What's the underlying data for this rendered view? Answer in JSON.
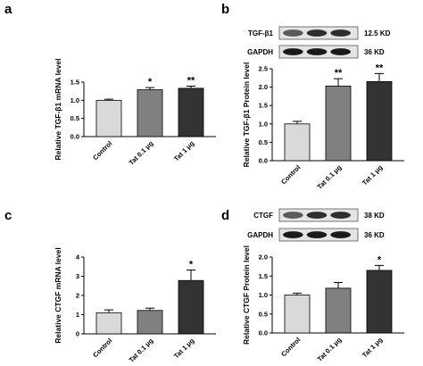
{
  "chart_data": [
    {
      "panel": "a",
      "type": "bar",
      "categories": [
        "Control",
        "Tat 0.1 μg",
        "Tat 1 μg"
      ],
      "values": [
        1.0,
        1.29,
        1.33
      ],
      "errors": [
        0.03,
        0.06,
        0.06
      ],
      "significance": [
        "",
        "*",
        "**"
      ],
      "ylabel": "Relative TGF-β1 mRNA level",
      "ylim": [
        0,
        1.5
      ],
      "yticks": [
        "0.0",
        "0.5",
        "1.0",
        "1.5"
      ],
      "colors": [
        "#d9d9d9",
        "#808080",
        "#333333"
      ]
    },
    {
      "panel": "b",
      "type": "bar",
      "categories": [
        "Control",
        "Tat 0.1 μg",
        "Tat 1 μg"
      ],
      "values": [
        1.0,
        2.03,
        2.15
      ],
      "errors": [
        0.07,
        0.2,
        0.22
      ],
      "significance": [
        "",
        "**",
        "**"
      ],
      "ylabel": "Relative TGF-β1 Protein level",
      "ylim": [
        0,
        2.5
      ],
      "yticks": [
        "0.0",
        "0.5",
        "1.0",
        "1.5",
        "2.0",
        "2.5"
      ],
      "colors": [
        "#d9d9d9",
        "#808080",
        "#333333"
      ],
      "blot": {
        "rows": [
          {
            "label": "TGF-β1",
            "size": "12.5 KD"
          },
          {
            "label": "GAPDH",
            "size": "36 KD"
          }
        ]
      }
    },
    {
      "panel": "c",
      "type": "bar",
      "categories": [
        "Control",
        "Tat 0.1 μg",
        "Tat 1 μg"
      ],
      "values": [
        1.1,
        1.22,
        2.78
      ],
      "errors": [
        0.15,
        0.12,
        0.55
      ],
      "significance": [
        "",
        "",
        "*"
      ],
      "ylabel": "Relative CTGF mRNA level",
      "ylim": [
        0,
        4
      ],
      "yticks": [
        "0",
        "1",
        "2",
        "3",
        "4"
      ],
      "colors": [
        "#d9d9d9",
        "#808080",
        "#333333"
      ]
    },
    {
      "panel": "d",
      "type": "bar",
      "categories": [
        "Control",
        "Tat 0.1 μg",
        "Tat 1 μg"
      ],
      "values": [
        1.0,
        1.18,
        1.65
      ],
      "errors": [
        0.05,
        0.15,
        0.13
      ],
      "significance": [
        "",
        "",
        "*"
      ],
      "ylabel": "Relative CTGF Protein level",
      "ylim": [
        0,
        2.0
      ],
      "yticks": [
        "0.0",
        "0.5",
        "1.0",
        "1.5",
        "2.0"
      ],
      "colors": [
        "#d9d9d9",
        "#808080",
        "#333333"
      ],
      "blot": {
        "rows": [
          {
            "label": "CTGF",
            "size": "38 KD"
          },
          {
            "label": "GAPDH",
            "size": "36 KD"
          }
        ]
      }
    }
  ]
}
